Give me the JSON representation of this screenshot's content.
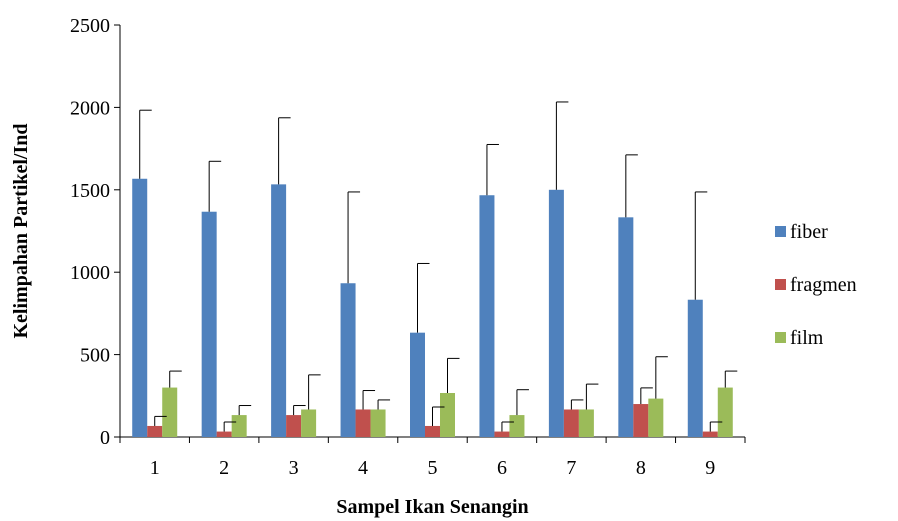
{
  "chart_data": {
    "type": "bar",
    "title": "",
    "xlabel": "Sampel Ikan Senangin",
    "ylabel": "Kelimpahan Partikel/Ind",
    "categories": [
      "1",
      "2",
      "3",
      "4",
      "5",
      "6",
      "7",
      "8",
      "9"
    ],
    "ylim": [
      0,
      2500
    ],
    "yticks": [
      "0",
      "500",
      "1000",
      "1500",
      "2000",
      "2500"
    ],
    "grid": false,
    "legend_position": "right",
    "series": [
      {
        "name": "fiber",
        "color": "#4F81BD",
        "values": [
          1567,
          1367,
          1533,
          933,
          633,
          1467,
          1500,
          1333,
          833
        ],
        "error_upper": [
          1983,
          1673,
          1937,
          1487,
          1053,
          1775,
          2033,
          1712,
          1487
        ]
      },
      {
        "name": "fragmen",
        "color": "#C0504D",
        "values": [
          67,
          33,
          133,
          167,
          67,
          33,
          167,
          200,
          33
        ],
        "error_upper": [
          125,
          91,
          191,
          282,
          182,
          91,
          225,
          298,
          91
        ]
      },
      {
        "name": "film",
        "color": "#9BBB59",
        "values": [
          300,
          133,
          167,
          167,
          267,
          133,
          167,
          233,
          300
        ],
        "error_upper": [
          400,
          191,
          377,
          225,
          477,
          287,
          321,
          487,
          400
        ]
      }
    ]
  }
}
